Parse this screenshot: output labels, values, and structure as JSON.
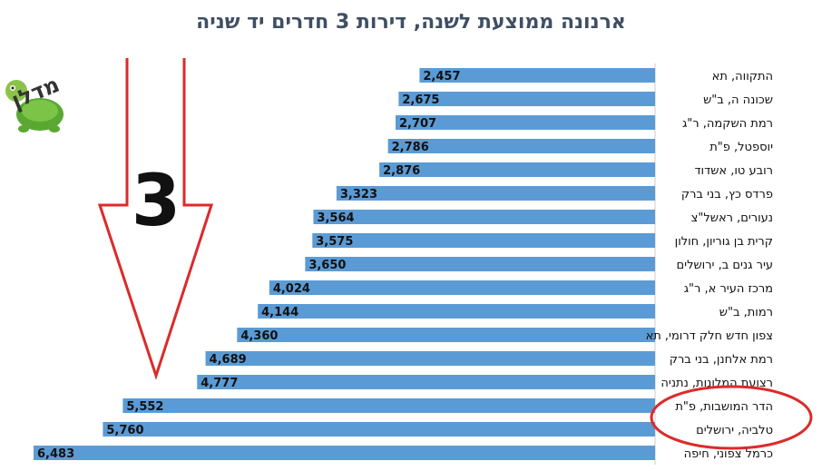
{
  "chart_data": {
    "type": "bar",
    "orientation": "horizontal",
    "title": "ארנונה ממוצעת לשנה, דירות 3 חדרים יד שניה",
    "categories": [
      "התקווה, תא",
      "שכונה ה, ב\"ש",
      "רמת השקמה, ר\"ג",
      "יוספטל, פ\"ת",
      "רובע טו, אשדוד",
      "פרדס כץ, בני ברק",
      "נעורים, ראשל\"צ",
      "קרית בן גוריון, חולון",
      "עיר גנים ב, ירושלים",
      "מרכז העיר א, ר\"ג",
      "רמות, ב\"ש",
      "צפון חדש חלק דרומי, תא",
      "רמת אלחנן, בני ברק",
      "רצועת המלונות, נתניה",
      "הדר המושבות, פ\"ת",
      "טלביה, ירושלים",
      "כרמל צפוני, חיפה"
    ],
    "values": [
      2457,
      2675,
      2707,
      2786,
      2876,
      3323,
      3564,
      3575,
      3650,
      4024,
      4144,
      4360,
      4689,
      4777,
      5552,
      5760,
      6483
    ],
    "value_labels": [
      "2,457",
      "2,675",
      "2,707",
      "2,786",
      "2,876",
      "3,323",
      "3,564",
      "3,575",
      "3,650",
      "4,024",
      "4,144",
      "4,360",
      "4,689",
      "4,777",
      "5,552",
      "5,760",
      "6,483"
    ],
    "highlighted": [
      "הדר המושבות, פ\"ת",
      "טלביה, ירושלים"
    ],
    "bar_color": "#5b9bd5",
    "highlight_color": "#dc2a2a",
    "grid": false,
    "legend": "none"
  },
  "decoration": {
    "arrow_label": "3",
    "arrow_color": "#dc2a2a",
    "logo_text": "מדלן",
    "logo_color": "#6fb43f"
  }
}
